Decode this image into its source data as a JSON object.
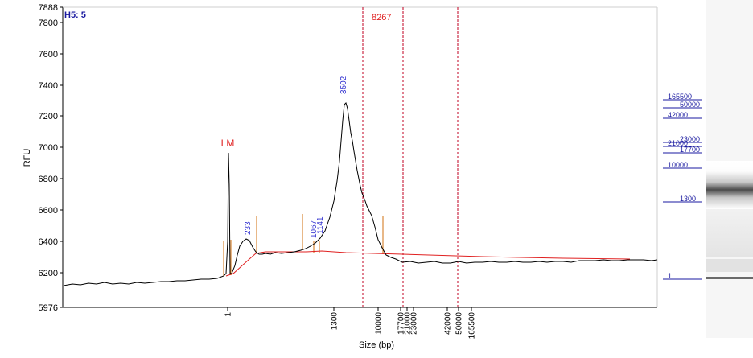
{
  "chart_data": {
    "type": "line",
    "well_label": "H5: 5",
    "ylabel": "RFU",
    "xlabel": "Size (bp)",
    "y_ticks": [
      "5976",
      "6200",
      "6400",
      "6600",
      "6800",
      "7000",
      "7200",
      "7400",
      "7600",
      "7800",
      "7888"
    ],
    "x_ticks": [
      "1",
      "1300",
      "10000",
      "17700",
      "21000",
      "23000",
      "42000",
      "50000",
      "165500"
    ],
    "peak_labels": [
      {
        "text": "LM",
        "color": "#e02020"
      },
      {
        "text": "233",
        "color": "#3030d0"
      },
      {
        "text": "1067",
        "color": "#3030d0"
      },
      {
        "text": "1141",
        "color": "#3030d0"
      },
      {
        "text": "3502",
        "color": "#3030d0"
      }
    ],
    "marker_label": {
      "text": "8267",
      "color": "#e02020"
    },
    "ladder_labels": [
      "165500",
      "50000",
      "42000",
      "23000",
      "21000",
      "17700",
      "10000",
      "1300",
      "1"
    ],
    "colors": {
      "trace": "#000000",
      "baseline": "#e02020",
      "marker_line": "#c00020",
      "peak_bracket": "#d07010",
      "ladder": "#1a1aa0",
      "axis": "#000000"
    },
    "trace_points": [
      [
        79,
        355
      ],
      [
        90,
        353
      ],
      [
        100,
        354
      ],
      [
        110,
        352
      ],
      [
        120,
        353
      ],
      [
        130,
        351
      ],
      [
        140,
        353
      ],
      [
        150,
        352
      ],
      [
        160,
        353
      ],
      [
        170,
        351
      ],
      [
        180,
        352
      ],
      [
        190,
        351
      ],
      [
        200,
        350
      ],
      [
        210,
        350
      ],
      [
        220,
        349
      ],
      [
        230,
        349
      ],
      [
        240,
        348
      ],
      [
        250,
        347
      ],
      [
        260,
        347
      ],
      [
        270,
        346
      ],
      [
        278,
        343
      ],
      [
        281,
        340
      ],
      [
        283,
        300
      ],
      [
        284,
        190
      ],
      [
        285,
        230
      ],
      [
        286,
        340
      ],
      [
        288,
        340
      ],
      [
        292,
        330
      ],
      [
        295,
        317
      ],
      [
        298,
        306
      ],
      [
        302,
        300
      ],
      [
        306,
        297
      ],
      [
        310,
        299
      ],
      [
        314,
        307
      ],
      [
        318,
        313
      ],
      [
        322,
        316
      ],
      [
        326,
        316
      ],
      [
        330,
        315
      ],
      [
        336,
        316
      ],
      [
        342,
        314
      ],
      [
        350,
        315
      ],
      [
        358,
        314
      ],
      [
        366,
        313
      ],
      [
        374,
        311
      ],
      [
        380,
        309
      ],
      [
        386,
        306
      ],
      [
        392,
        302
      ],
      [
        398,
        296
      ],
      [
        404,
        287
      ],
      [
        410,
        270
      ],
      [
        415,
        250
      ],
      [
        419,
        225
      ],
      [
        422,
        200
      ],
      [
        424,
        175
      ],
      [
        426,
        150
      ],
      [
        428,
        130
      ],
      [
        430,
        128
      ],
      [
        432,
        135
      ],
      [
        434,
        150
      ],
      [
        436,
        165
      ],
      [
        438,
        175
      ],
      [
        440,
        188
      ],
      [
        442,
        200
      ],
      [
        444,
        212
      ],
      [
        446,
        222
      ],
      [
        448,
        232
      ],
      [
        450,
        240
      ],
      [
        454,
        250
      ],
      [
        456,
        256
      ],
      [
        458,
        260
      ],
      [
        462,
        268
      ],
      [
        466,
        282
      ],
      [
        470,
        298
      ],
      [
        475,
        308
      ],
      [
        480,
        317
      ],
      [
        486,
        320
      ],
      [
        492,
        322
      ],
      [
        500,
        326
      ],
      [
        510,
        325
      ],
      [
        520,
        327
      ],
      [
        530,
        326
      ],
      [
        540,
        325
      ],
      [
        550,
        327
      ],
      [
        560,
        327
      ],
      [
        570,
        325
      ],
      [
        580,
        327
      ],
      [
        590,
        326
      ],
      [
        600,
        326
      ],
      [
        610,
        325
      ],
      [
        620,
        326
      ],
      [
        630,
        326
      ],
      [
        640,
        325
      ],
      [
        650,
        326
      ],
      [
        660,
        326
      ],
      [
        670,
        325
      ],
      [
        680,
        326
      ],
      [
        690,
        325
      ],
      [
        700,
        325
      ],
      [
        710,
        326
      ],
      [
        720,
        324
      ],
      [
        730,
        324
      ],
      [
        740,
        324
      ],
      [
        750,
        323
      ],
      [
        760,
        324
      ],
      [
        770,
        324
      ],
      [
        780,
        323
      ],
      [
        790,
        323
      ],
      [
        800,
        323
      ],
      [
        810,
        324
      ],
      [
        817,
        323
      ]
    ],
    "baseline_points": [
      [
        281,
        343
      ],
      [
        290,
        340
      ],
      [
        300,
        331
      ],
      [
        310,
        322
      ],
      [
        318,
        315
      ],
      [
        330,
        313
      ],
      [
        380,
        313
      ],
      [
        400,
        312
      ],
      [
        430,
        314
      ],
      [
        500,
        316
      ],
      [
        600,
        319
      ],
      [
        700,
        321
      ],
      [
        783,
        322
      ]
    ]
  }
}
